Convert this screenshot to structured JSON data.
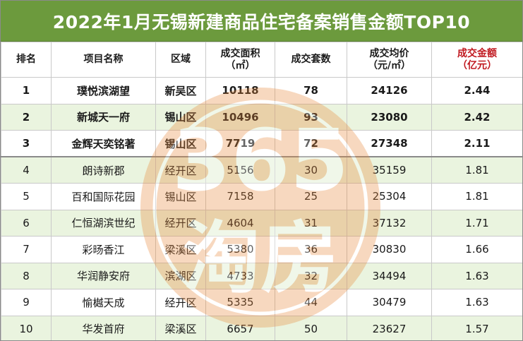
{
  "title": "2022年1月无锡新建商品住宅备案销售金额TOP10",
  "header": {
    "rank": "排名",
    "project": "项目名称",
    "district": "区域",
    "area_line1": "成交面积",
    "area_line2": "（㎡）",
    "units": "成交套数",
    "price_line1": "成交均价",
    "price_line2": "（元/㎡）",
    "amount_line1": "成交金额",
    "amount_line2": "（亿元）"
  },
  "rows": [
    {
      "rank": "1",
      "project": "璞悦滨湖望",
      "district": "新吴区",
      "area": "10118",
      "units": "78",
      "price": "24126",
      "amount": "2.44"
    },
    {
      "rank": "2",
      "project": "新城天一府",
      "district": "锡山区",
      "area": "10496",
      "units": "93",
      "price": "23080",
      "amount": "2.42"
    },
    {
      "rank": "3",
      "project": "金辉天奕铭著",
      "district": "锡山区",
      "area": "7719",
      "units": "72",
      "price": "27348",
      "amount": "2.11"
    },
    {
      "rank": "4",
      "project": "朗诗新郡",
      "district": "经开区",
      "area": "5156",
      "units": "30",
      "price": "35159",
      "amount": "1.81"
    },
    {
      "rank": "5",
      "project": "百和国际花园",
      "district": "锡山区",
      "area": "7158",
      "units": "25",
      "price": "25304",
      "amount": "1.81"
    },
    {
      "rank": "6",
      "project": "仁恒湖滨世纪",
      "district": "经开区",
      "area": "4604",
      "units": "31",
      "price": "37132",
      "amount": "1.71"
    },
    {
      "rank": "7",
      "project": "彩旸香江",
      "district": "梁溪区",
      "area": "5380",
      "units": "36",
      "price": "30830",
      "amount": "1.66"
    },
    {
      "rank": "8",
      "project": "华润静安府",
      "district": "滨湖区",
      "area": "4733",
      "units": "32",
      "price": "34494",
      "amount": "1.63"
    },
    {
      "rank": "9",
      "project": "愉樾天成",
      "district": "经开区",
      "area": "5335",
      "units": "44",
      "price": "30479",
      "amount": "1.63"
    },
    {
      "rank": "10",
      "project": "华发首府",
      "district": "梁溪区",
      "area": "6657",
      "units": "50",
      "price": "23627",
      "amount": "1.57"
    }
  ],
  "watermark": {
    "top": "365",
    "bottom": "淘房",
    "color": "#e8893a"
  }
}
